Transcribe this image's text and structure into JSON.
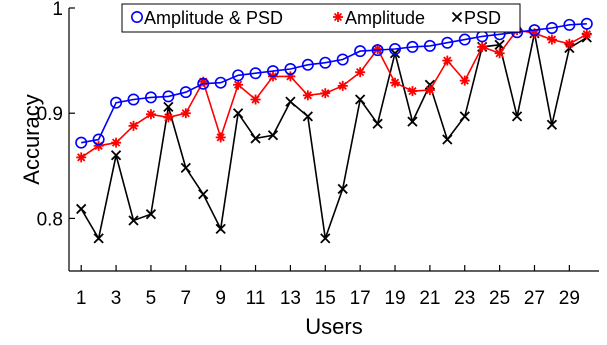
{
  "chart_data": {
    "type": "line",
    "xlabel": "Users",
    "ylabel": "Accuracy",
    "xlim": [
      0.3,
      30.7
    ],
    "ylim": [
      0.75,
      1.0
    ],
    "xticks": [
      1,
      3,
      5,
      7,
      9,
      11,
      13,
      15,
      17,
      19,
      21,
      23,
      25,
      27,
      29
    ],
    "xtick_labels": [
      "1",
      "3",
      "5",
      "7",
      "9",
      "11",
      "13",
      "15",
      "17",
      "19",
      "21",
      "23",
      "25",
      "27",
      "29"
    ],
    "yticks": [
      0.8,
      0.9,
      1.0
    ],
    "ytick_labels": [
      "0.8",
      "0.9",
      "1"
    ],
    "grid": false,
    "legend_position": "top",
    "x": [
      1,
      2,
      3,
      4,
      5,
      6,
      7,
      8,
      9,
      10,
      11,
      12,
      13,
      14,
      15,
      16,
      17,
      18,
      19,
      20,
      21,
      22,
      23,
      24,
      25,
      26,
      27,
      28,
      29,
      30
    ],
    "series": [
      {
        "name": "Amplitude & PSD",
        "color": "#0000ff",
        "marker": "circle",
        "values": [
          0.872,
          0.875,
          0.91,
          0.913,
          0.915,
          0.916,
          0.92,
          0.928,
          0.929,
          0.936,
          0.938,
          0.94,
          0.942,
          0.946,
          0.948,
          0.951,
          0.959,
          0.96,
          0.961,
          0.963,
          0.964,
          0.967,
          0.97,
          0.973,
          0.975,
          0.977,
          0.979,
          0.981,
          0.984,
          0.985
        ]
      },
      {
        "name": "Amplitude",
        "color": "#ff0000",
        "marker": "asterisk",
        "values": [
          0.858,
          0.869,
          0.872,
          0.888,
          0.899,
          0.896,
          0.9,
          0.93,
          0.877,
          0.927,
          0.913,
          0.935,
          0.935,
          0.917,
          0.919,
          0.926,
          0.939,
          0.961,
          0.929,
          0.921,
          0.922,
          0.95,
          0.931,
          0.963,
          0.957,
          0.979,
          0.976,
          0.97,
          0.966,
          0.975
        ]
      },
      {
        "name": "PSD",
        "color": "#000000",
        "marker": "x",
        "values": [
          0.809,
          0.781,
          0.86,
          0.798,
          0.804,
          0.906,
          0.848,
          0.823,
          0.79,
          0.9,
          0.876,
          0.879,
          0.911,
          0.897,
          0.781,
          0.828,
          0.913,
          0.89,
          0.957,
          0.892,
          0.927,
          0.875,
          0.897,
          0.963,
          0.965,
          0.897,
          0.976,
          0.889,
          0.962,
          0.972
        ]
      }
    ]
  }
}
